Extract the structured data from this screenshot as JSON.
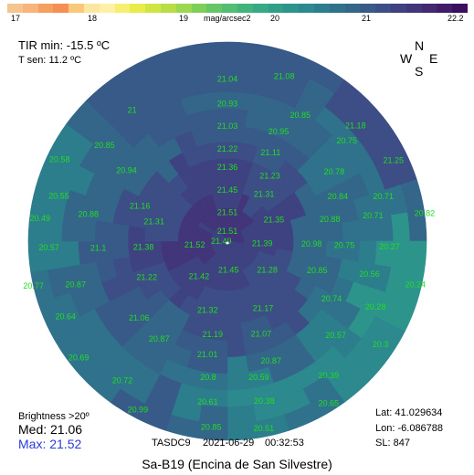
{
  "scale": {
    "ticks": [
      "17",
      "18",
      "19",
      "20",
      "21",
      "22.2"
    ],
    "unit": "mag/arcsec2",
    "colors": [
      "#f6c58f",
      "#f8b47b",
      "#f5a060",
      "#f58f55",
      "#f9c878",
      "#fce6a0",
      "#fff0a8",
      "#f7ef6f",
      "#e8eb48",
      "#d0e543",
      "#b7de45",
      "#9bd74f",
      "#7ecf5a",
      "#66c667",
      "#52bd73",
      "#43b37c",
      "#37a985",
      "#309f8a",
      "#2d948c",
      "#2c898d",
      "#2d7e8d",
      "#30728c",
      "#34668a",
      "#385a88",
      "#3c4e85",
      "#3f4280",
      "#42357a",
      "#432972",
      "#411c69",
      "#3b0f5f"
    ]
  },
  "header": {
    "tir_label": "TIR min:",
    "tir_value": "-15.5 ºC",
    "tsen_label": "T sen:",
    "tsen_value": "11.2 ºC"
  },
  "compass": {
    "n": "N",
    "w": "W",
    "e": "E",
    "s": "S"
  },
  "stats": {
    "brightness_label": "Brightness >20º",
    "med_label": "Med:",
    "med_value": "21.06",
    "max_label": "Max:",
    "max_value": "21.52",
    "max_color": "#2b3bd6"
  },
  "footer": {
    "device": "TASDC9",
    "date": "2021-06-29",
    "time": "00:32:53",
    "title": "Sa-B19 (Encina de San Silvestre)"
  },
  "location": {
    "lat_label": "Lat:",
    "lat_value": "41.029634",
    "lon_label": "Lon:",
    "lon_value": "-6.086788",
    "sl_label": "SL:",
    "sl_value": "847"
  },
  "chart_data": {
    "type": "heatmap",
    "projection": "polar-sky",
    "unit": "mag/arcsec2",
    "vmin": 17,
    "vmax": 22.2,
    "readings": [
      {
        "v": "21.04",
        "az": 0,
        "zen": 79
      },
      {
        "v": "21.08",
        "az": 19,
        "zen": 85
      },
      {
        "v": "20.93",
        "az": 0,
        "zen": 67
      },
      {
        "v": "20.85",
        "az": 30,
        "zen": 71
      },
      {
        "v": "21.18",
        "az": 48,
        "zen": 84
      },
      {
        "v": "21",
        "az": -36,
        "zen": 79
      },
      {
        "v": "21.03",
        "az": 0,
        "zen": 56
      },
      {
        "v": "20.95",
        "az": 25,
        "zen": 59
      },
      {
        "v": "20.75",
        "az": 50,
        "zen": 76
      },
      {
        "v": "20.85",
        "az": -52,
        "zen": 76
      },
      {
        "v": "21.22",
        "az": 0,
        "zen": 45
      },
      {
        "v": "21.11",
        "az": 26,
        "zen": 48
      },
      {
        "v": "20.78",
        "az": 57,
        "zen": 62
      },
      {
        "v": "21.25",
        "az": 64,
        "zen": 90
      },
      {
        "v": "20.58",
        "az": -64,
        "zen": 91
      },
      {
        "v": "20.94",
        "az": -55,
        "zen": 60
      },
      {
        "v": "21.36",
        "az": 0,
        "zen": 36
      },
      {
        "v": "21.23",
        "az": 33,
        "zen": 38
      },
      {
        "v": "20.84",
        "az": 68,
        "zen": 58
      },
      {
        "v": "20.71",
        "az": 74,
        "zen": 79
      },
      {
        "v": "20.55",
        "az": -75,
        "zen": 85
      },
      {
        "v": "21.16",
        "az": -68,
        "zen": 46
      },
      {
        "v": "21.45",
        "az": 0,
        "zen": 25
      },
      {
        "v": "21.31",
        "az": 38,
        "zen": 29
      },
      {
        "v": "21.51",
        "az": 0,
        "zen": 14
      },
      {
        "v": "21.51",
        "az": 0,
        "zen": 5
      },
      {
        "v": "21.35",
        "az": 65,
        "zen": 25
      },
      {
        "v": "20.88",
        "az": 78,
        "zen": 51
      },
      {
        "v": "20.71",
        "az": 80,
        "zen": 72
      },
      {
        "v": "20.82",
        "az": 82,
        "zen": 97
      },
      {
        "v": "20.49",
        "az": -83,
        "zen": 92
      },
      {
        "v": "20.88",
        "az": -79,
        "zen": 69
      },
      {
        "v": "21.31",
        "az": -75,
        "zen": 37
      },
      {
        "v": "20.57",
        "az": -92,
        "zen": 87
      },
      {
        "v": "21.1",
        "az": -93,
        "zen": 63
      },
      {
        "v": "21.38",
        "az": -94,
        "zen": 41
      },
      {
        "v": "21.52",
        "az": -96,
        "zen": 16
      },
      {
        "v": "21.49",
        "az": -90,
        "zen": 3
      },
      {
        "v": "21.39",
        "az": 94,
        "zen": 17
      },
      {
        "v": "20.98",
        "az": 92,
        "zen": 41
      },
      {
        "v": "20.75",
        "az": 92,
        "zen": 57
      },
      {
        "v": "20.27",
        "az": 92,
        "zen": 79
      },
      {
        "v": "20.77",
        "az": -103,
        "zen": 97
      },
      {
        "v": "20.87",
        "az": -106,
        "zen": 77
      },
      {
        "v": "21.22",
        "az": -114,
        "zen": 43
      },
      {
        "v": "21.42",
        "az": -141,
        "zen": 22
      },
      {
        "v": "21.45",
        "az": 178,
        "zen": 14
      },
      {
        "v": "21.28",
        "az": 126,
        "zen": 24
      },
      {
        "v": "20.85",
        "az": 108,
        "zen": 46
      },
      {
        "v": "20.56",
        "az": 103,
        "zen": 71
      },
      {
        "v": "20.24",
        "az": 103,
        "zen": 94
      },
      {
        "v": "20.64",
        "az": -115,
        "zen": 87
      },
      {
        "v": "21.06",
        "az": -131,
        "zen": 57
      },
      {
        "v": "21.32",
        "az": -164,
        "zen": 35
      },
      {
        "v": "21.17",
        "az": 152,
        "zen": 37
      },
      {
        "v": "20.74",
        "az": 119,
        "zen": 58
      },
      {
        "v": "20.28",
        "az": 114,
        "zen": 79
      },
      {
        "v": "20.69",
        "az": -128,
        "zen": 92
      },
      {
        "v": "20.87",
        "az": -145,
        "zen": 58
      },
      {
        "v": "21.19",
        "az": -171,
        "zen": 46
      },
      {
        "v": "21.07",
        "az": 160,
        "zen": 48
      },
      {
        "v": "20.57",
        "az": 131,
        "zen": 70
      },
      {
        "v": "20.3",
        "az": 124,
        "zen": 90
      },
      {
        "v": "20.72",
        "az": -143,
        "zen": 85
      },
      {
        "v": "21.01",
        "az": -170,
        "zen": 56
      },
      {
        "v": "20.87",
        "az": 160,
        "zen": 62
      },
      {
        "v": "20.39",
        "az": 143,
        "zen": 82
      },
      {
        "v": "20.8",
        "az": -172,
        "zen": 67
      },
      {
        "v": "20.59",
        "az": 167,
        "zen": 68
      },
      {
        "v": "20.65",
        "az": 148,
        "zen": 93
      },
      {
        "v": "20.99",
        "az": -152,
        "zen": 93
      },
      {
        "v": "20.61",
        "az": -173,
        "zen": 79
      },
      {
        "v": "20.38",
        "az": 167,
        "zen": 80
      },
      {
        "v": "20.85",
        "az": -175,
        "zen": 91
      },
      {
        "v": "20.51",
        "az": 169,
        "zen": 93
      }
    ]
  }
}
